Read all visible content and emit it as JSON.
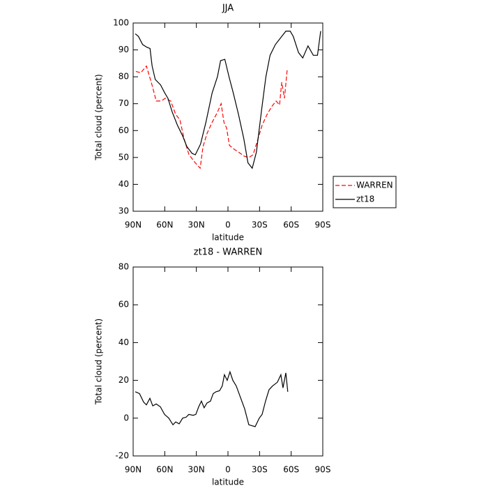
{
  "chart_data": [
    {
      "type": "line",
      "title": "JJA",
      "xlabel": "latitude",
      "ylabel": "Total cloud (percent)",
      "xlim": [
        90,
        -90
      ],
      "xticks": [
        {
          "value": 90,
          "label": "90N"
        },
        {
          "value": 60,
          "label": "60N"
        },
        {
          "value": 30,
          "label": "30N"
        },
        0,
        {
          "value": -30,
          "label": "30S"
        },
        {
          "value": -60,
          "label": "60S"
        },
        {
          "value": -90,
          "label": "90S"
        }
      ],
      "ylim": [
        30,
        100
      ],
      "yticks": [
        30,
        40,
        50,
        60,
        70,
        80,
        90,
        100
      ],
      "legend": "right",
      "series": [
        {
          "name": "WARREN",
          "color": "#ff0000",
          "line_style": "dashed",
          "x": [
            87.4,
            82.7,
            77.4,
            72.1,
            68.1,
            63.5,
            59.5,
            54.3,
            49.6,
            45.6,
            41.7,
            37,
            31,
            26.4,
            23.7,
            19.8,
            15.1,
            9.8,
            6.5,
            3.8,
            1.3,
            -1.4,
            -6,
            -10,
            -15.3,
            -19.9,
            -23.8,
            -27.8,
            -32.4,
            -37.1,
            -41.7,
            -45.7,
            -49,
            -51,
            -53.6,
            -56.3
          ],
          "values": [
            82,
            81.5,
            84,
            77,
            71,
            71,
            72,
            71,
            66,
            64,
            57,
            51,
            48,
            46,
            54,
            59,
            63,
            67,
            70,
            63,
            61,
            54.5,
            53,
            52,
            50.5,
            50,
            51,
            56,
            62,
            66,
            69,
            71,
            69.5,
            78,
            72,
            83
          ]
        },
        {
          "name": "zt18",
          "color": "#000000",
          "line_style": "solid",
          "x": [
            88,
            85,
            81,
            77,
            74,
            72,
            69,
            64,
            60,
            57,
            53,
            48,
            43,
            39,
            34,
            31,
            26,
            21,
            15,
            10,
            7,
            3,
            -1,
            -5,
            -10,
            -15,
            -19,
            -23,
            -27,
            -32,
            -36,
            -40,
            -45,
            -51,
            -55,
            -59,
            -62,
            -67,
            -71,
            -76,
            -81,
            -85,
            -88
          ],
          "values": [
            96,
            95,
            92,
            91,
            90.5,
            84,
            79,
            77,
            74,
            72,
            67,
            62,
            58,
            54,
            51.5,
            51,
            55,
            63,
            74,
            80,
            86,
            86.5,
            80,
            74,
            66,
            57,
            48,
            46,
            52,
            68,
            80,
            88,
            92,
            95,
            97,
            97,
            95,
            89,
            87,
            91.5,
            88,
            88,
            97
          ]
        }
      ]
    },
    {
      "type": "line",
      "title": "zt18 - WARREN",
      "xlabel": "latitude",
      "ylabel": "Total cloud (percent)",
      "xlim": [
        90,
        -90
      ],
      "xticks": [
        {
          "value": 90,
          "label": "90N"
        },
        {
          "value": 60,
          "label": "60N"
        },
        {
          "value": 30,
          "label": "30N"
        },
        0,
        {
          "value": -30,
          "label": "30S"
        },
        {
          "value": -60,
          "label": "60S"
        },
        {
          "value": -90,
          "label": "90S"
        }
      ],
      "ylim": [
        -20,
        80
      ],
      "yticks": [
        -20,
        0,
        20,
        40,
        60,
        80
      ],
      "series": [
        {
          "color": "#000000",
          "line_style": "solid",
          "x": [
            88,
            84,
            80.1,
            77.4,
            74.1,
            71.4,
            68.1,
            64.2,
            60.2,
            56.2,
            52.2,
            49.6,
            46.3,
            43,
            39.7,
            37.1,
            33.1,
            30.5,
            27.8,
            25.2,
            22.6,
            19.9,
            16.6,
            14,
            11.3,
            8,
            5.4,
            3.4,
            0.7,
            -1.9,
            -4.6,
            -7.9,
            -11.2,
            -15.8,
            -19.8,
            -25.8,
            -29.7,
            -32.4,
            -35.7,
            -39,
            -42.3,
            -46.9,
            -50.2,
            -52.2,
            -54.9,
            -56.8
          ],
          "values": [
            14,
            13,
            8.5,
            7,
            10.5,
            6.5,
            7.5,
            6,
            2,
            0,
            -3.5,
            -2,
            -3,
            0,
            0.5,
            2,
            1.5,
            2,
            6,
            9,
            5.5,
            8,
            9,
            13,
            14,
            14.5,
            17,
            23,
            20,
            24.5,
            20,
            17,
            12,
            5,
            -3.5,
            -4.5,
            0,
            2,
            9,
            15,
            17,
            19,
            23,
            16,
            24,
            14
          ]
        }
      ]
    }
  ]
}
